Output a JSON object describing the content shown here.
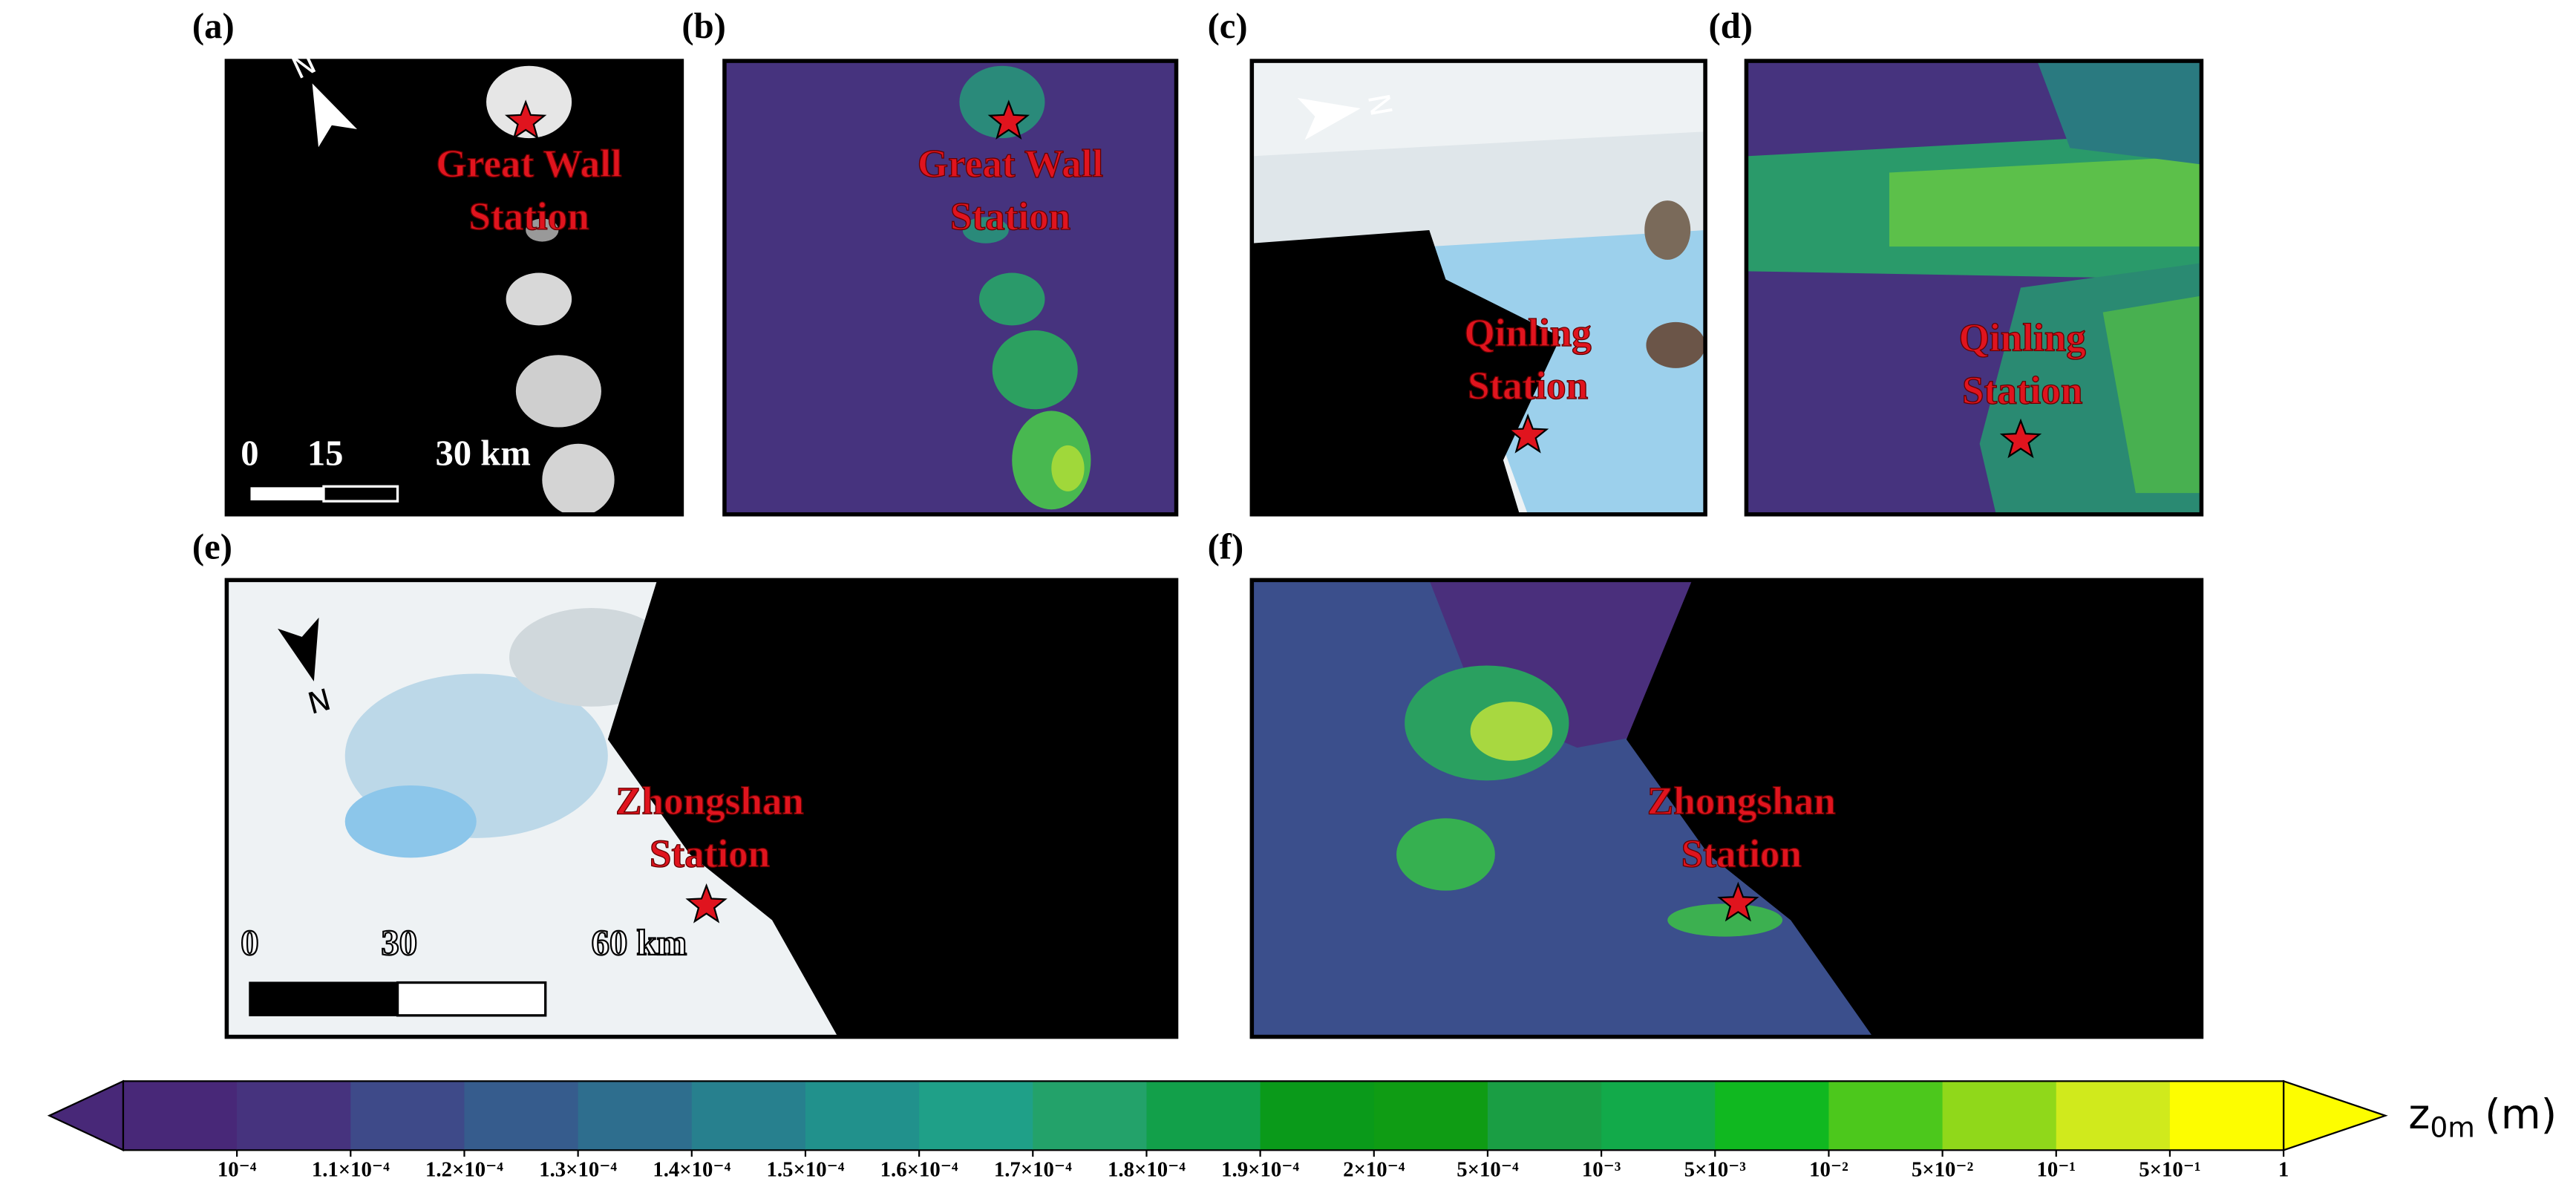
{
  "panels": [
    {
      "label": "(a)",
      "station": [
        "Great Wall",
        "Station"
      ],
      "north": "N",
      "scale": [
        "0",
        "15",
        "30 km"
      ]
    },
    {
      "label": "(b)",
      "station": [
        "Great Wall",
        "Station"
      ]
    },
    {
      "label": "(c)",
      "station": [
        "Qinling",
        "Station"
      ],
      "north": "N"
    },
    {
      "label": "(d)",
      "station": [
        "Qinling",
        "Station"
      ]
    },
    {
      "label": "(e)",
      "station": [
        "Zhongshan",
        "Station"
      ],
      "north": "N",
      "scale": [
        "0",
        "30",
        "60 km"
      ]
    },
    {
      "label": "(f)",
      "station": [
        "Zhongshan",
        "Station"
      ]
    }
  ],
  "colorbar": {
    "title": "z",
    "title_sub": "0m",
    "title_unit": "(m)",
    "colors": [
      "#482878",
      "#46337e",
      "#3e4a89",
      "#365c8d",
      "#2e6e8e",
      "#27808e",
      "#21918c",
      "#1fa088",
      "#23a26a",
      "#12a04a",
      "#0a9a1a",
      "#0f9c14",
      "#1a9e44",
      "#12aa4a",
      "#10b820",
      "#4cc81c",
      "#90d81a",
      "#d0ea1c",
      "#fdfd00"
    ],
    "ticks": [
      {
        "value": 0.0001,
        "label": "10⁻⁴"
      },
      {
        "value": 0.00011,
        "label": "1.1×10⁻⁴"
      },
      {
        "value": 0.00012,
        "label": "1.2×10⁻⁴"
      },
      {
        "value": 0.00013,
        "label": "1.3×10⁻⁴"
      },
      {
        "value": 0.00014,
        "label": "1.4×10⁻⁴"
      },
      {
        "value": 0.00015,
        "label": "1.5×10⁻⁴"
      },
      {
        "value": 0.00016,
        "label": "1.6×10⁻⁴"
      },
      {
        "value": 0.00017,
        "label": "1.7×10⁻⁴"
      },
      {
        "value": 0.00018,
        "label": "1.8×10⁻⁴"
      },
      {
        "value": 0.00019,
        "label": "1.9×10⁻⁴"
      },
      {
        "value": 0.0002,
        "label": "2×10⁻⁴"
      },
      {
        "value": 0.0005,
        "label": "5×10⁻⁴"
      },
      {
        "value": 0.001,
        "label": "10⁻³"
      },
      {
        "value": 0.005,
        "label": "5×10⁻³"
      },
      {
        "value": 0.01,
        "label": "10⁻²"
      },
      {
        "value": 0.05,
        "label": "5×10⁻²"
      },
      {
        "value": 0.1,
        "label": "10⁻¹"
      },
      {
        "value": 0.5,
        "label": "5×10⁻¹"
      },
      1
    ]
  }
}
